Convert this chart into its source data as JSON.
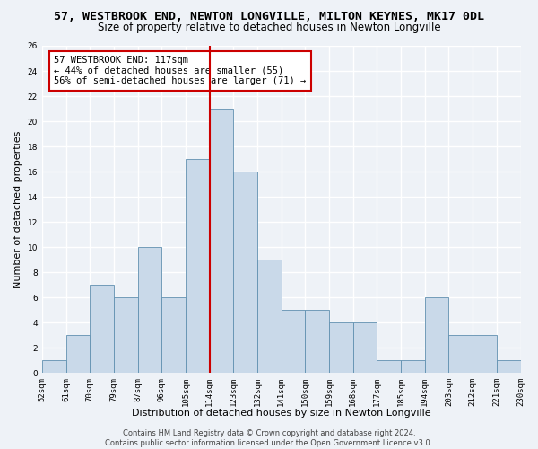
{
  "title": "57, WESTBROOK END, NEWTON LONGVILLE, MILTON KEYNES, MK17 0DL",
  "subtitle": "Size of property relative to detached houses in Newton Longville",
  "xlabel": "Distribution of detached houses by size in Newton Longville",
  "ylabel": "Number of detached properties",
  "bar_values": [
    1,
    3,
    7,
    6,
    10,
    6,
    17,
    21,
    16,
    9,
    5,
    5,
    4,
    4,
    1,
    1,
    6,
    3,
    3,
    1
  ],
  "tick_labels": [
    "52sqm",
    "61sqm",
    "70sqm",
    "79sqm",
    "87sqm",
    "96sqm",
    "105sqm",
    "114sqm",
    "123sqm",
    "132sqm",
    "141sqm",
    "150sqm",
    "159sqm",
    "168sqm",
    "177sqm",
    "185sqm",
    "194sqm",
    "203sqm",
    "212sqm",
    "221sqm",
    "230sqm"
  ],
  "bar_color": "#c9d9e9",
  "bar_edge_color": "#6090b0",
  "vline_x": 7,
  "vline_color": "#cc0000",
  "ylim": [
    0,
    26
  ],
  "yticks": [
    0,
    2,
    4,
    6,
    8,
    10,
    12,
    14,
    16,
    18,
    20,
    22,
    24,
    26
  ],
  "annotation_text": "57 WESTBROOK END: 117sqm\n← 44% of detached houses are smaller (55)\n56% of semi-detached houses are larger (71) →",
  "annotation_box_color": "#ffffff",
  "annotation_box_edge": "#cc0000",
  "footer": "Contains HM Land Registry data © Crown copyright and database right 2024.\nContains public sector information licensed under the Open Government Licence v3.0.",
  "background_color": "#eef2f7",
  "grid_color": "#ffffff",
  "title_fontsize": 9.5,
  "subtitle_fontsize": 8.5,
  "xlabel_fontsize": 8,
  "ylabel_fontsize": 8,
  "tick_fontsize": 6.5,
  "annotation_fontsize": 7.5,
  "footer_fontsize": 6
}
